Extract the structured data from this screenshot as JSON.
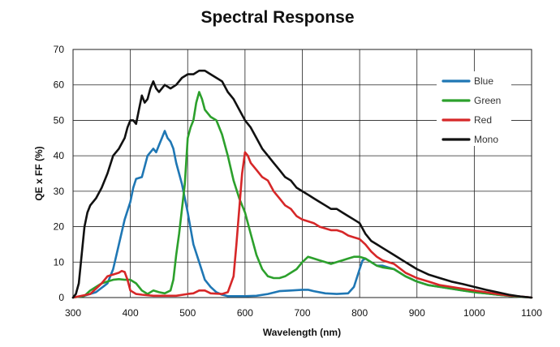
{
  "chart_data": {
    "type": "line",
    "title": "Spectral Response",
    "xlabel": "Wavelength (nm)",
    "ylabel": "QE x FF (%)",
    "xlim": [
      300,
      1100
    ],
    "ylim": [
      0,
      70
    ],
    "xticks": [
      "300",
      "400",
      "500",
      "600",
      "700",
      "800",
      "900",
      "1000",
      "1100"
    ],
    "yticks": [
      "0",
      "10",
      "20",
      "30",
      "40",
      "50",
      "60",
      "70"
    ],
    "grid": true,
    "legend_position": "top-right",
    "series": [
      {
        "name": "Blue",
        "color": "#1f77b4",
        "points": [
          [
            300,
            0
          ],
          [
            320,
            0.5
          ],
          [
            340,
            1.5
          ],
          [
            360,
            4
          ],
          [
            370,
            8
          ],
          [
            380,
            15
          ],
          [
            390,
            22
          ],
          [
            400,
            27
          ],
          [
            405,
            31
          ],
          [
            410,
            33.5
          ],
          [
            420,
            34
          ],
          [
            425,
            37
          ],
          [
            430,
            40
          ],
          [
            440,
            42
          ],
          [
            445,
            41
          ],
          [
            450,
            43
          ],
          [
            455,
            45
          ],
          [
            460,
            47
          ],
          [
            465,
            45
          ],
          [
            470,
            44
          ],
          [
            475,
            42
          ],
          [
            480,
            38
          ],
          [
            490,
            32
          ],
          [
            500,
            24
          ],
          [
            510,
            15
          ],
          [
            520,
            10
          ],
          [
            530,
            5
          ],
          [
            540,
            3
          ],
          [
            550,
            1.5
          ],
          [
            560,
            0.8
          ],
          [
            570,
            0.4
          ],
          [
            580,
            0.4
          ],
          [
            600,
            0.4
          ],
          [
            620,
            0.5
          ],
          [
            640,
            1
          ],
          [
            660,
            1.8
          ],
          [
            680,
            2
          ],
          [
            700,
            2.2
          ],
          [
            710,
            2.2
          ],
          [
            720,
            1.8
          ],
          [
            740,
            1.2
          ],
          [
            760,
            1
          ],
          [
            780,
            1.2
          ],
          [
            790,
            3
          ],
          [
            800,
            8
          ],
          [
            805,
            10.5
          ],
          [
            810,
            11
          ],
          [
            820,
            10
          ],
          [
            830,
            9
          ],
          [
            840,
            9
          ],
          [
            860,
            8
          ],
          [
            880,
            6
          ],
          [
            900,
            4.5
          ],
          [
            920,
            3.5
          ],
          [
            940,
            3
          ],
          [
            960,
            2.5
          ],
          [
            980,
            2
          ],
          [
            1000,
            1.5
          ],
          [
            1020,
            1.2
          ],
          [
            1040,
            0.8
          ],
          [
            1060,
            0.5
          ],
          [
            1080,
            0.2
          ],
          [
            1100,
            0
          ]
        ]
      },
      {
        "name": "Green",
        "color": "#2ca02c",
        "points": [
          [
            300,
            0
          ],
          [
            320,
            0.5
          ],
          [
            330,
            2
          ],
          [
            340,
            3
          ],
          [
            350,
            4
          ],
          [
            360,
            4.5
          ],
          [
            370,
            5
          ],
          [
            380,
            5.2
          ],
          [
            390,
            5
          ],
          [
            400,
            5
          ],
          [
            410,
            4
          ],
          [
            420,
            2
          ],
          [
            430,
            1
          ],
          [
            440,
            2
          ],
          [
            450,
            1.5
          ],
          [
            460,
            1.2
          ],
          [
            470,
            2
          ],
          [
            475,
            5
          ],
          [
            480,
            12
          ],
          [
            485,
            18
          ],
          [
            490,
            25
          ],
          [
            495,
            32
          ],
          [
            500,
            45
          ],
          [
            505,
            48
          ],
          [
            510,
            50
          ],
          [
            515,
            55
          ],
          [
            520,
            58
          ],
          [
            525,
            56
          ],
          [
            530,
            53
          ],
          [
            540,
            51
          ],
          [
            550,
            50
          ],
          [
            560,
            46
          ],
          [
            570,
            40
          ],
          [
            580,
            33
          ],
          [
            590,
            28
          ],
          [
            600,
            24
          ],
          [
            610,
            18
          ],
          [
            620,
            12
          ],
          [
            630,
            8
          ],
          [
            640,
            6
          ],
          [
            650,
            5.5
          ],
          [
            660,
            5.5
          ],
          [
            670,
            6
          ],
          [
            680,
            7
          ],
          [
            690,
            8
          ],
          [
            700,
            10
          ],
          [
            710,
            11.5
          ],
          [
            720,
            11
          ],
          [
            730,
            10.5
          ],
          [
            740,
            10
          ],
          [
            750,
            9.5
          ],
          [
            760,
            10
          ],
          [
            770,
            10.5
          ],
          [
            780,
            11
          ],
          [
            790,
            11.5
          ],
          [
            800,
            11.5
          ],
          [
            810,
            11
          ],
          [
            820,
            10
          ],
          [
            830,
            9
          ],
          [
            840,
            8.5
          ],
          [
            860,
            8
          ],
          [
            880,
            6
          ],
          [
            900,
            4.5
          ],
          [
            920,
            3.5
          ],
          [
            940,
            3
          ],
          [
            960,
            2.5
          ],
          [
            980,
            2
          ],
          [
            1000,
            1.5
          ],
          [
            1020,
            1.2
          ],
          [
            1040,
            0.8
          ],
          [
            1060,
            0.5
          ],
          [
            1080,
            0.2
          ],
          [
            1100,
            0
          ]
        ]
      },
      {
        "name": "Red",
        "color": "#d62728",
        "points": [
          [
            300,
            0
          ],
          [
            330,
            1
          ],
          [
            350,
            4
          ],
          [
            360,
            6
          ],
          [
            370,
            6.5
          ],
          [
            380,
            7
          ],
          [
            385,
            7.5
          ],
          [
            390,
            7.2
          ],
          [
            395,
            5
          ],
          [
            400,
            2
          ],
          [
            410,
            1
          ],
          [
            420,
            0.8
          ],
          [
            440,
            0.5
          ],
          [
            460,
            0.5
          ],
          [
            480,
            0.5
          ],
          [
            500,
            1
          ],
          [
            510,
            1.2
          ],
          [
            520,
            2
          ],
          [
            530,
            2
          ],
          [
            540,
            1.2
          ],
          [
            560,
            1
          ],
          [
            570,
            1.5
          ],
          [
            580,
            6
          ],
          [
            585,
            15
          ],
          [
            590,
            25
          ],
          [
            595,
            35
          ],
          [
            600,
            41
          ],
          [
            605,
            40
          ],
          [
            610,
            38
          ],
          [
            620,
            36
          ],
          [
            630,
            34
          ],
          [
            640,
            33
          ],
          [
            650,
            30
          ],
          [
            660,
            28
          ],
          [
            670,
            26
          ],
          [
            680,
            25
          ],
          [
            690,
            23
          ],
          [
            700,
            22
          ],
          [
            710,
            21.5
          ],
          [
            720,
            21
          ],
          [
            730,
            20
          ],
          [
            740,
            19.5
          ],
          [
            750,
            19
          ],
          [
            760,
            19
          ],
          [
            770,
            18.5
          ],
          [
            780,
            17.5
          ],
          [
            790,
            17
          ],
          [
            800,
            16.5
          ],
          [
            810,
            15
          ],
          [
            820,
            13
          ],
          [
            830,
            11.5
          ],
          [
            840,
            10.5
          ],
          [
            860,
            9.5
          ],
          [
            880,
            7
          ],
          [
            900,
            5.5
          ],
          [
            920,
            4.5
          ],
          [
            940,
            3.5
          ],
          [
            960,
            3
          ],
          [
            980,
            2.5
          ],
          [
            1000,
            2
          ],
          [
            1020,
            1.5
          ],
          [
            1040,
            1
          ],
          [
            1060,
            0.6
          ],
          [
            1080,
            0.3
          ],
          [
            1100,
            0
          ]
        ]
      },
      {
        "name": "Mono",
        "color": "#111111",
        "points": [
          [
            300,
            0
          ],
          [
            305,
            1
          ],
          [
            310,
            4
          ],
          [
            315,
            12
          ],
          [
            320,
            20
          ],
          [
            325,
            24
          ],
          [
            330,
            26
          ],
          [
            340,
            28
          ],
          [
            350,
            31
          ],
          [
            360,
            35
          ],
          [
            370,
            40
          ],
          [
            380,
            42
          ],
          [
            390,
            45
          ],
          [
            395,
            48
          ],
          [
            400,
            50
          ],
          [
            405,
            50
          ],
          [
            410,
            49
          ],
          [
            415,
            53
          ],
          [
            420,
            57
          ],
          [
            425,
            55
          ],
          [
            430,
            56
          ],
          [
            435,
            59
          ],
          [
            440,
            61
          ],
          [
            445,
            59
          ],
          [
            450,
            58
          ],
          [
            455,
            59
          ],
          [
            460,
            60
          ],
          [
            470,
            59
          ],
          [
            480,
            60
          ],
          [
            490,
            62
          ],
          [
            500,
            63
          ],
          [
            510,
            63
          ],
          [
            520,
            64
          ],
          [
            530,
            64
          ],
          [
            540,
            63
          ],
          [
            550,
            62
          ],
          [
            560,
            61
          ],
          [
            570,
            58
          ],
          [
            580,
            56
          ],
          [
            590,
            53
          ],
          [
            600,
            50
          ],
          [
            610,
            48
          ],
          [
            620,
            45
          ],
          [
            630,
            42
          ],
          [
            640,
            40
          ],
          [
            650,
            38
          ],
          [
            660,
            36
          ],
          [
            670,
            34
          ],
          [
            680,
            33
          ],
          [
            690,
            31
          ],
          [
            700,
            30
          ],
          [
            710,
            29
          ],
          [
            720,
            28
          ],
          [
            730,
            27
          ],
          [
            740,
            26
          ],
          [
            750,
            25
          ],
          [
            760,
            25
          ],
          [
            770,
            24
          ],
          [
            780,
            23
          ],
          [
            790,
            22
          ],
          [
            800,
            21
          ],
          [
            810,
            18
          ],
          [
            820,
            16
          ],
          [
            830,
            15
          ],
          [
            840,
            14
          ],
          [
            860,
            12
          ],
          [
            880,
            10
          ],
          [
            900,
            8
          ],
          [
            920,
            6.5
          ],
          [
            940,
            5.5
          ],
          [
            960,
            4.5
          ],
          [
            980,
            3.8
          ],
          [
            1000,
            3
          ],
          [
            1020,
            2.2
          ],
          [
            1040,
            1.5
          ],
          [
            1060,
            0.8
          ],
          [
            1080,
            0.3
          ],
          [
            1100,
            0
          ]
        ]
      }
    ]
  }
}
